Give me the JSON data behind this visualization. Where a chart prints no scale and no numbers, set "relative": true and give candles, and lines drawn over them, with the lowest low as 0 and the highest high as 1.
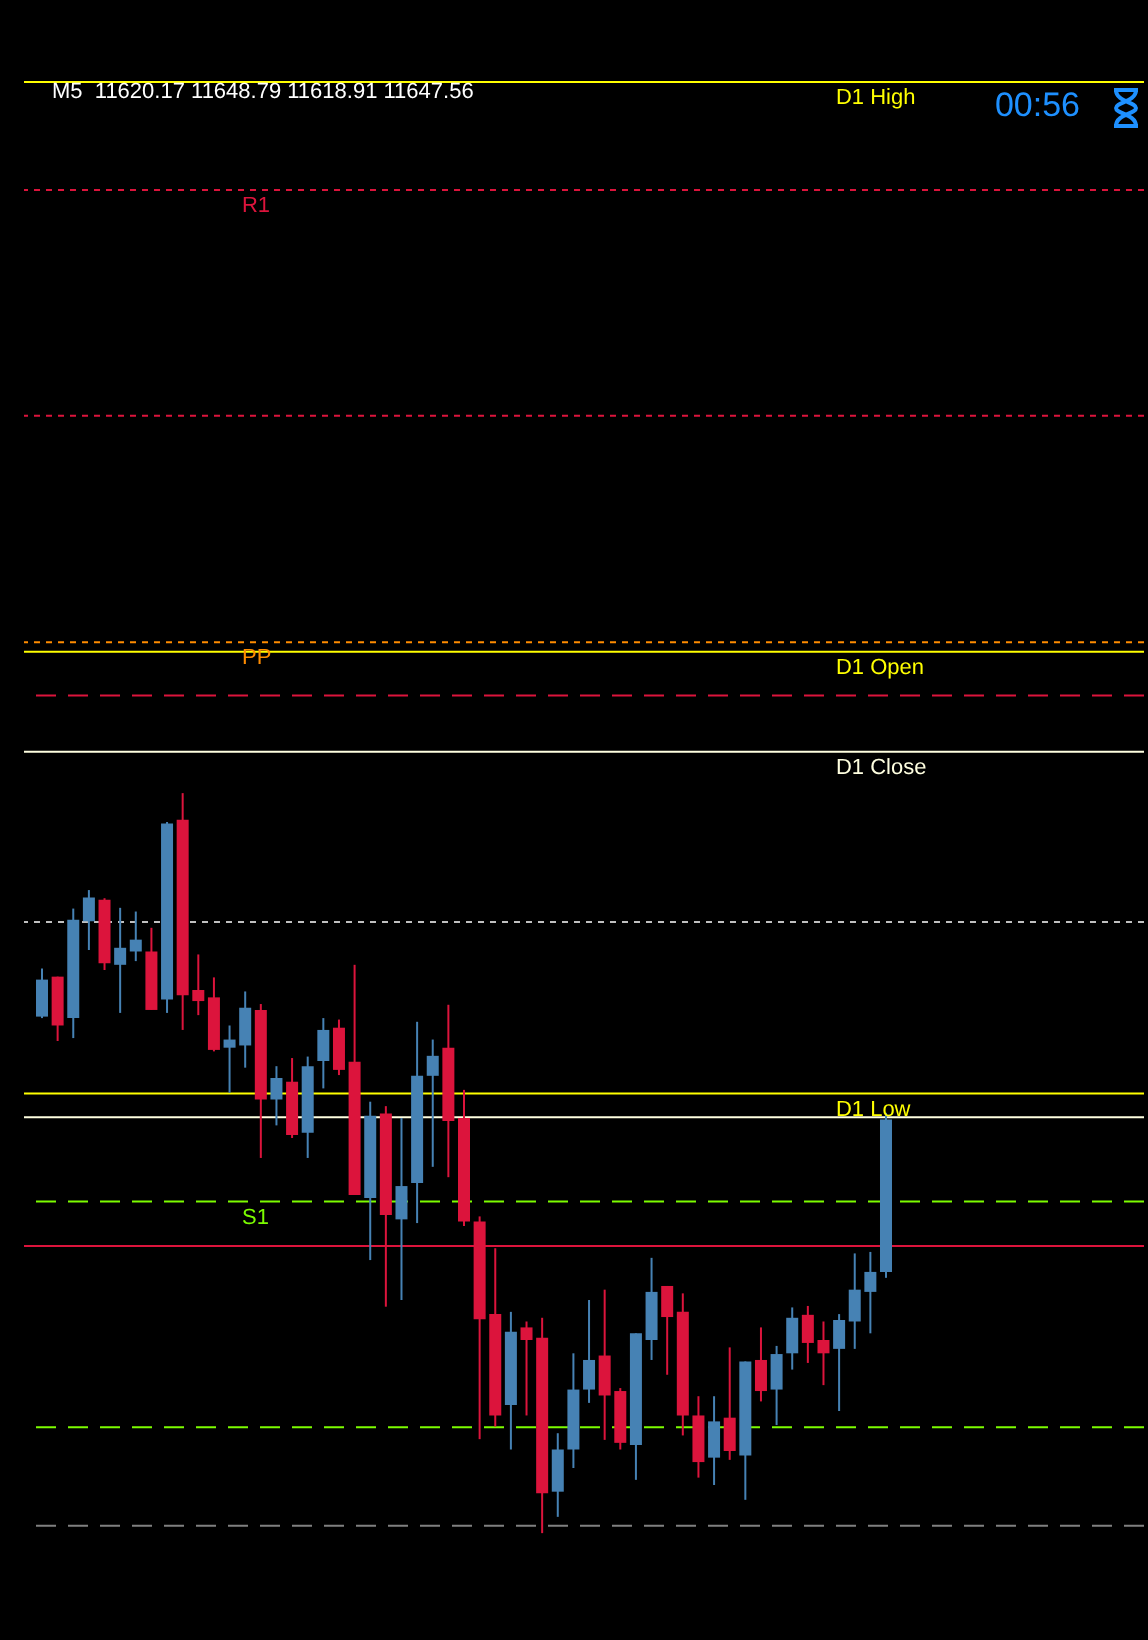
{
  "chart_data": {
    "type": "candlestick",
    "title": "M5  11620.17 11648.79 11618.91 11647.56",
    "relative": true,
    "annotations": [
      "00:56"
    ],
    "categories": [
      null,
      null,
      null,
      null,
      null,
      null,
      null,
      null,
      null,
      null,
      null,
      null,
      null,
      null,
      null,
      null,
      null,
      null,
      null,
      null,
      null,
      null,
      null,
      null,
      null,
      null,
      null,
      null,
      null,
      null,
      null,
      null,
      null,
      null,
      null,
      null,
      null,
      null,
      null,
      null,
      null,
      null,
      null,
      null,
      null,
      null,
      null,
      null,
      null,
      null,
      null,
      null,
      null,
      null,
      null
    ],
    "ohlc": [
      [
        0.698,
        0.763,
        0.696,
        0.748
      ],
      [
        0.752,
        0.752,
        0.665,
        0.686
      ],
      [
        0.696,
        0.844,
        0.669,
        0.829
      ],
      [
        0.827,
        0.869,
        0.788,
        0.859
      ],
      [
        0.856,
        0.858,
        0.761,
        0.77
      ],
      [
        0.768,
        0.845,
        0.703,
        0.791
      ],
      [
        0.786,
        0.84,
        0.773,
        0.802
      ],
      [
        0.786,
        0.818,
        0.707,
        0.707
      ],
      [
        0.721,
        0.961,
        0.703,
        0.959
      ],
      [
        0.964,
        1,
        0.68,
        0.727
      ],
      [
        0.734,
        0.782,
        0.7,
        0.719
      ],
      [
        0.724,
        0.751,
        0.651,
        0.653
      ],
      [
        0.656,
        0.686,
        0.595,
        0.667
      ],
      [
        0.659,
        0.732,
        0.629,
        0.71
      ],
      [
        0.707,
        0.715,
        0.507,
        0.586
      ],
      [
        0.586,
        0.631,
        0.551,
        0.615
      ],
      [
        0.61,
        0.642,
        0.534,
        0.538
      ],
      [
        0.541,
        0.644,
        0.507,
        0.631
      ],
      [
        0.638,
        0.696,
        0.601,
        0.68
      ],
      [
        0.683,
        0.694,
        0.619,
        0.626
      ],
      [
        0.637,
        0.768,
        0.457,
        0.457
      ],
      [
        0.453,
        0.583,
        0.369,
        0.564
      ],
      [
        0.567,
        0.577,
        0.306,
        0.43
      ],
      [
        0.424,
        0.561,
        0.315,
        0.469
      ],
      [
        0.473,
        0.691,
        0.419,
        0.618
      ],
      [
        0.618,
        0.667,
        0.495,
        0.645
      ],
      [
        0.656,
        0.714,
        0.481,
        0.557
      ],
      [
        0.561,
        0.599,
        0.415,
        0.421
      ],
      [
        0.421,
        0.428,
        0.127,
        0.289
      ],
      [
        0.296,
        0.385,
        0.144,
        0.159
      ],
      [
        0.173,
        0.299,
        0.113,
        0.272
      ],
      [
        0.278,
        0.286,
        0.159,
        0.261
      ],
      [
        0.264,
        0.291,
        0,
        0.054
      ],
      [
        0.056,
        0.135,
        0.022,
        0.113
      ],
      [
        0.113,
        0.243,
        0.088,
        0.194
      ],
      [
        0.194,
        0.315,
        0.176,
        0.234
      ],
      [
        0.24,
        0.329,
        0.126,
        0.186
      ],
      [
        0.192,
        0.196,
        0.113,
        0.122
      ],
      [
        0.119,
        0.27,
        0.072,
        0.27
      ],
      [
        0.261,
        0.372,
        0.234,
        0.326
      ],
      [
        0.334,
        0.334,
        0.214,
        0.292
      ],
      [
        0.299,
        0.324,
        0.132,
        0.159
      ],
      [
        0.159,
        0.185,
        0.075,
        0.096
      ],
      [
        0.102,
        0.185,
        0.065,
        0.151
      ],
      [
        0.156,
        0.251,
        0.099,
        0.111
      ],
      [
        0.105,
        0.232,
        0.045,
        0.232
      ],
      [
        0.234,
        0.278,
        0.178,
        0.192
      ],
      [
        0.194,
        0.253,
        0.146,
        0.242
      ],
      [
        0.243,
        0.305,
        0.221,
        0.291
      ],
      [
        0.295,
        0.307,
        0.23,
        0.257
      ],
      [
        0.261,
        0.286,
        0.2,
        0.243
      ],
      [
        0.249,
        0.296,
        0.165,
        0.288
      ],
      [
        0.286,
        0.378,
        0.249,
        0.329
      ],
      [
        0.326,
        0.38,
        0.27,
        0.353
      ],
      [
        0.353,
        0.568,
        0.345,
        0.559
      ]
    ],
    "colors": [
      "#4682b4",
      "#dc143c",
      "#4682b4",
      "#4682b4",
      "#dc143c",
      "#4682b4",
      "#4682b4",
      "#dc143c",
      "#4682b4",
      "#dc143c",
      "#dc143c",
      "#dc143c",
      "#4682b4",
      "#4682b4",
      "#dc143c",
      "#4682b4",
      "#dc143c",
      "#4682b4",
      "#4682b4",
      "#dc143c",
      "#dc143c",
      "#4682b4",
      "#dc143c",
      "#4682b4",
      "#4682b4",
      "#4682b4",
      "#dc143c",
      "#dc143c",
      "#dc143c",
      "#dc143c",
      "#4682b4",
      "#dc143c",
      "#dc143c",
      "#4682b4",
      "#4682b4",
      "#4682b4",
      "#dc143c",
      "#dc143c",
      "#4682b4",
      "#4682b4",
      "#dc143c",
      "#dc143c",
      "#dc143c",
      "#4682b4",
      "#dc143c",
      "#4682b4",
      "#dc143c",
      "#4682b4",
      "#4682b4",
      "#dc143c",
      "#dc143c",
      "#4682b4",
      "#4682b4",
      "#4682b4",
      "#4682b4"
    ],
    "ref_lines": [
      {
        "axis": "y",
        "value": 1.961,
        "label": "D1 High",
        "color": "#ffff00",
        "line_style": "solid"
      },
      {
        "axis": "y",
        "value": 1.815,
        "label": "R1",
        "color": "#dc143c",
        "line_style": "dotted"
      },
      {
        "axis": "y",
        "value": 1.51,
        "label": null,
        "color": "#dc143c",
        "line_style": "dotted"
      },
      {
        "axis": "y",
        "value": 1.204,
        "label": "PP",
        "color": "#ff8c00",
        "line_style": "dotted"
      },
      {
        "axis": "y",
        "value": 1.191,
        "label": "D1 Open",
        "color": "#ffff00",
        "line_style": "solid"
      },
      {
        "axis": "y",
        "value": 1.132,
        "label": null,
        "color": "#dc143c",
        "line_style": "dashed"
      },
      {
        "axis": "y",
        "value": 1.056,
        "label": "D1 Close",
        "color": "#ffffe0",
        "line_style": "solid"
      },
      {
        "axis": "y",
        "value": 0.826,
        "label": null,
        "color": "#c0c0c0",
        "line_style": "dotted"
      },
      {
        "axis": "y",
        "value": 0.594,
        "label": "D1 Low",
        "color": "#ffff00",
        "line_style": "solid"
      },
      {
        "axis": "y",
        "value": 0.562,
        "label": null,
        "color": "#ffffe0",
        "line_style": "solid"
      },
      {
        "axis": "y",
        "value": 0.448,
        "label": "S1",
        "color": "#7cfc00",
        "line_style": "dashed"
      },
      {
        "axis": "y",
        "value": 0.388,
        "label": null,
        "color": "#dc143c",
        "line_style": "solid"
      },
      {
        "axis": "y",
        "value": 0.143,
        "label": null,
        "color": "#7cfc00",
        "line_style": "dashed"
      },
      {
        "axis": "y",
        "value": 0.01,
        "label": null,
        "color": "#808080",
        "line_style": "dashed"
      }
    ]
  }
}
